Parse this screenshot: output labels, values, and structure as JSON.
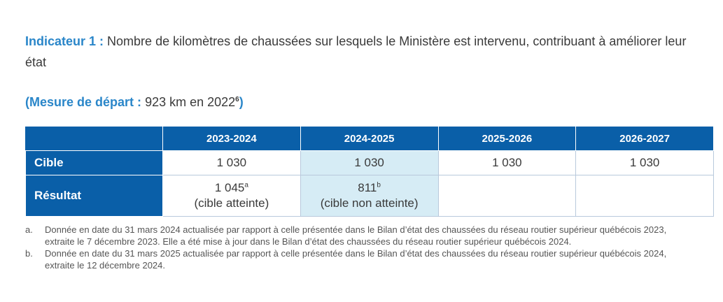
{
  "indicator": {
    "label": "Indicateur 1 :",
    "text": "Nombre de kilomètres de chaussées sur lesquels le Ministère est intervenu, contribuant à améliorer leur état"
  },
  "baseline": {
    "open": "(Mesure de départ :",
    "value": "923 km en 2022",
    "footnote": "6",
    "close": ")"
  },
  "table": {
    "columns": [
      "2023-2024",
      "2024-2025",
      "2025-2026",
      "2026-2027"
    ],
    "rows": {
      "target": {
        "label": "Cible",
        "values": [
          "1 030",
          "1 030",
          "1 030",
          "1 030"
        ]
      },
      "result": {
        "label": "Résultat",
        "cells": [
          {
            "value": "1 045",
            "note": "a",
            "status": "(cible atteinte)"
          },
          {
            "value": "811",
            "note": "b",
            "status": "(cible non atteinte)"
          }
        ]
      }
    },
    "highlight_color": "#d6ecf5",
    "header_color": "#0a5fa8"
  },
  "notes": [
    {
      "label": "a.",
      "text": "Donnée en date du 31 mars 2024 actualisée par rapport à celle présentée dans le Bilan d’état des chaussées du réseau routier supérieur québécois 2023, extraite le 7 décembre 2023. Elle a été mise à jour dans le Bilan d’état des chaussées du réseau routier supérieur québécois 2024."
    },
    {
      "label": "b.",
      "text": "Donnée en date du 31 mars 2025 actualisée par rapport à celle présentée dans le Bilan d’état des chaussées du réseau routier supérieur québécois 2024, extraite le 12 décembre 2024."
    }
  ]
}
